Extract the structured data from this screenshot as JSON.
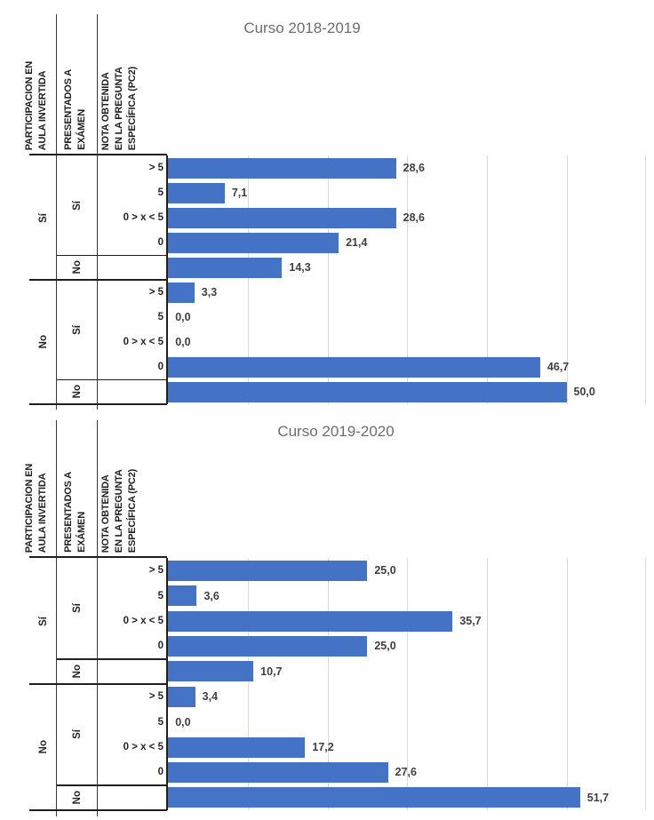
{
  "axis": {
    "max": 60,
    "grid_step": 10
  },
  "colors": {
    "bar": "#4472C4",
    "title_text": "#6d6d6d",
    "value_text": "#3f3f3f",
    "category_text": "#262626",
    "gridline": "#d9d9d9",
    "table_border": "#1f1f1f"
  },
  "table_headers": {
    "participation": [
      "PARTICIPACION EN",
      "AULA INVERTIDA"
    ],
    "exam": [
      "PRESENTADOS A",
      "EXÁMEN"
    ],
    "nota": [
      "NOTA OBTENIDA",
      "EN LA PREGUNTA",
      "ESPECÍFICA (PC2)"
    ]
  },
  "chart_data": [
    {
      "type": "bar",
      "orientation": "horizontal",
      "title": "Curso 2018-2019",
      "xlim": [
        0,
        60
      ],
      "grid": "vertical gridlines every 10, no tick labels",
      "legend": "none",
      "row_header_columns": [
        "PARTICIPACION EN AULA INVERTIDA",
        "PRESENTADOS A EXÁMEN",
        "NOTA OBTENIDA EN LA PREGUNTA ESPECÍFICA (PC2)"
      ],
      "participation_labels": [
        "Sí",
        "No"
      ],
      "exam_labels": [
        "Sí",
        "No",
        "Sí",
        "No"
      ],
      "rows": [
        {
          "participation": "Sí",
          "exam": "Sí",
          "category": "> 5",
          "value": 28.6,
          "label": "28,6"
        },
        {
          "participation": "Sí",
          "exam": "Sí",
          "category": "5",
          "value": 7.1,
          "label": "7,1"
        },
        {
          "participation": "Sí",
          "exam": "Sí",
          "category": "0 > x < 5",
          "value": 28.6,
          "label": "28,6"
        },
        {
          "participation": "Sí",
          "exam": "Sí",
          "category": "0",
          "value": 21.4,
          "label": "21,4"
        },
        {
          "participation": "Sí",
          "exam": "No",
          "category": "",
          "value": 14.3,
          "label": "14,3"
        },
        {
          "participation": "No",
          "exam": "Sí",
          "category": "> 5",
          "value": 3.3,
          "label": "3,3"
        },
        {
          "participation": "No",
          "exam": "Sí",
          "category": "5",
          "value": 0,
          "label": "0,0"
        },
        {
          "participation": "No",
          "exam": "Sí",
          "category": "0 > x < 5",
          "value": 0,
          "label": "0,0"
        },
        {
          "participation": "No",
          "exam": "Sí",
          "category": "0",
          "value": 46.7,
          "label": "46,7"
        },
        {
          "participation": "No",
          "exam": "No",
          "category": "",
          "value": 50,
          "label": "50,0"
        }
      ]
    },
    {
      "type": "bar",
      "orientation": "horizontal",
      "title": "Curso 2019-2020",
      "xlim": [
        0,
        60
      ],
      "grid": "vertical gridlines every 10, no tick labels",
      "legend": "none",
      "row_header_columns": [
        "PARTICIPACION EN AULA INVERTIDA",
        "PRESENTADOS A EXÁMEN",
        "NOTA OBTENIDA EN LA PREGUNTA ESPECÍFICA (PC2)"
      ],
      "participation_labels": [
        "Sí",
        "No"
      ],
      "exam_labels": [
        "Sí",
        "No",
        "Sí",
        "No"
      ],
      "rows": [
        {
          "participation": "Sí",
          "exam": "Sí",
          "category": "> 5",
          "value": 25,
          "label": "25,0"
        },
        {
          "participation": "Sí",
          "exam": "Sí",
          "category": "5",
          "value": 3.6,
          "label": "3,6"
        },
        {
          "participation": "Sí",
          "exam": "Sí",
          "category": "0 > x < 5",
          "value": 35.7,
          "label": "35,7"
        },
        {
          "participation": "Sí",
          "exam": "Sí",
          "category": "0",
          "value": 25,
          "label": "25,0"
        },
        {
          "participation": "Sí",
          "exam": "No",
          "category": "",
          "value": 10.7,
          "label": "10,7"
        },
        {
          "participation": "No",
          "exam": "Sí",
          "category": "> 5",
          "value": 3.4,
          "label": "3,4"
        },
        {
          "participation": "No",
          "exam": "Sí",
          "category": "5",
          "value": 0,
          "label": "0,0"
        },
        {
          "participation": "No",
          "exam": "Sí",
          "category": "0 > x < 5",
          "value": 17.2,
          "label": "17,2"
        },
        {
          "participation": "No",
          "exam": "Sí",
          "category": "0",
          "value": 27.6,
          "label": "27,6"
        },
        {
          "participation": "No",
          "exam": "No",
          "category": "",
          "value": 51.7,
          "label": "51,7"
        }
      ]
    }
  ]
}
